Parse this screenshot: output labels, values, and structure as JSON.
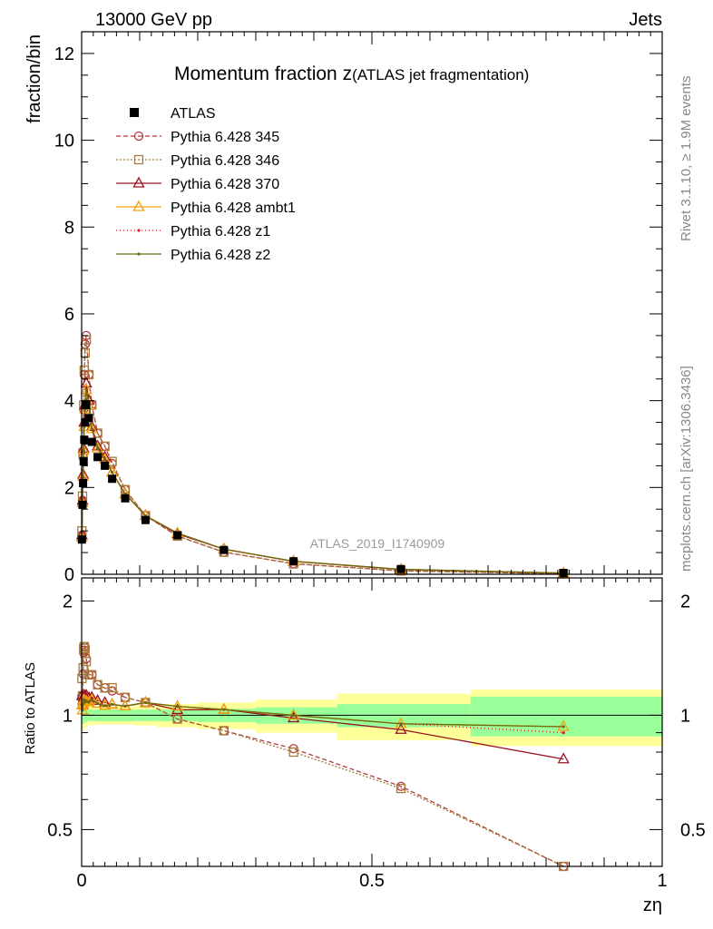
{
  "header": {
    "left": "13000 GeV pp",
    "right": "Jets"
  },
  "side_labels": {
    "rivet": "Rivet 3.1.10, ≥ 1.9M events",
    "mcplots": "mcplots.cern.ch [arXiv:1306.3436]"
  },
  "chart_data": {
    "type": "line",
    "title_main": "Momentum fraction z",
    "title_sub": "(ATLAS jet fragmentation)",
    "watermark": "ATLAS_2019_I1740909",
    "xlabel": "zη",
    "ylabel_top": "fraction/bin",
    "ylabel_ratio": "Ratio to ATLAS",
    "xlim": [
      0,
      1
    ],
    "ylim_top": [
      0,
      12.5
    ],
    "ylim_ratio": [
      0.4,
      2.3
    ],
    "x_ticks": [
      "0",
      "0.5",
      "1"
    ],
    "y_ticks_top": [
      "0",
      "2",
      "4",
      "6",
      "8",
      "10",
      "12"
    ],
    "y_ticks_ratio": [
      "0.5",
      "1",
      "2"
    ],
    "x": [
      0.0005,
      0.0015,
      0.0025,
      0.0035,
      0.0045,
      0.006,
      0.008,
      0.0125,
      0.0175,
      0.0275,
      0.04,
      0.0525,
      0.075,
      0.11,
      0.165,
      0.245,
      0.365,
      0.55,
      0.83
    ],
    "data": {
      "name": "ATLAS",
      "values": [
        0.8,
        1.6,
        2.1,
        2.6,
        3.1,
        3.5,
        3.9,
        3.6,
        3.05,
        2.7,
        2.5,
        2.2,
        1.75,
        1.25,
        0.9,
        0.56,
        0.3,
        0.12,
        0.03
      ]
    },
    "series": [
      {
        "name": "Pythia 6.428 345",
        "color": "#b5393c",
        "dash": "5,3",
        "marker": "circle",
        "values": [
          0.9,
          1.7,
          2.7,
          3.8,
          4.6,
          5.3,
          5.5,
          4.6,
          3.9,
          3.25,
          2.95,
          2.55,
          1.95,
          1.35,
          0.88,
          0.51,
          0.245,
          0.078,
          0.011
        ]
      },
      {
        "name": "Pythia 6.428 346",
        "color": "#a67c3c",
        "dash": "2,2",
        "marker": "square",
        "values": [
          1.0,
          1.8,
          2.8,
          3.9,
          4.7,
          5.1,
          5.4,
          4.6,
          3.9,
          3.25,
          2.95,
          2.6,
          1.95,
          1.35,
          0.88,
          0.51,
          0.24,
          0.077,
          0.011
        ]
      },
      {
        "name": "Pythia 6.428 370",
        "color": "#9b1221",
        "dash": "",
        "marker": "triangle",
        "values": [
          0.9,
          1.7,
          2.3,
          2.9,
          3.5,
          3.9,
          4.4,
          4.0,
          3.4,
          2.95,
          2.7,
          2.35,
          1.85,
          1.35,
          0.93,
          0.58,
          0.295,
          0.11,
          0.023
        ]
      },
      {
        "name": "Pythia 6.428 ambt1",
        "color": "#f0a010",
        "dash": "",
        "marker": "triangle",
        "values": [
          0.85,
          1.65,
          2.25,
          2.85,
          3.4,
          3.8,
          4.25,
          3.9,
          3.35,
          2.9,
          2.65,
          2.35,
          1.85,
          1.35,
          0.95,
          0.58,
          0.3,
          0.114,
          0.028
        ]
      },
      {
        "name": "Pythia 6.428 z1",
        "color": "#d42020",
        "dash": "1,3",
        "marker": "dot",
        "values": [
          0.85,
          1.65,
          2.25,
          2.85,
          3.4,
          3.8,
          4.25,
          3.9,
          3.35,
          2.9,
          2.65,
          2.35,
          1.85,
          1.35,
          0.95,
          0.58,
          0.3,
          0.114,
          0.027
        ]
      },
      {
        "name": "Pythia 6.428 z2",
        "color": "#6b6b10",
        "dash": "",
        "marker": "dot",
        "values": [
          0.85,
          1.65,
          2.25,
          2.85,
          3.4,
          3.8,
          4.25,
          3.9,
          3.35,
          2.9,
          2.65,
          2.35,
          1.85,
          1.35,
          0.95,
          0.58,
          0.3,
          0.114,
          0.028
        ]
      }
    ],
    "ratio_bands": {
      "edges": [
        0,
        0.005,
        0.01,
        0.02,
        0.035,
        0.06,
        0.09,
        0.13,
        0.2,
        0.3,
        0.44,
        0.67,
        1.0
      ],
      "stat_half_width": [
        0.05,
        0.04,
        0.035,
        0.035,
        0.035,
        0.035,
        0.035,
        0.035,
        0.04,
        0.05,
        0.07,
        0.12
      ],
      "total_half_width": [
        0.09,
        0.07,
        0.06,
        0.055,
        0.055,
        0.055,
        0.06,
        0.07,
        0.08,
        0.1,
        0.14,
        0.17
      ],
      "stat_color": "#99ff99",
      "total_color": "#ffff99"
    }
  }
}
